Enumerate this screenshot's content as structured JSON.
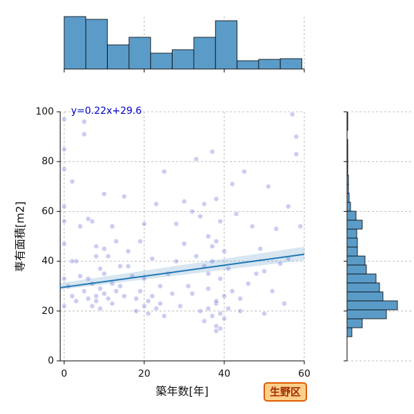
{
  "chart_data": [
    {
      "type": "scatter",
      "xlabel": "築年数[年]",
      "ylabel": "専有面積[m2]",
      "xlim": [
        -1,
        60
      ],
      "ylim": [
        0,
        100
      ],
      "xticks": [
        0,
        20,
        40,
        60
      ],
      "yticks": [
        0,
        20,
        40,
        60,
        80,
        100
      ],
      "grid": true,
      "color": "#5a5ad8",
      "x": [
        0,
        0,
        0,
        0,
        0,
        0,
        0,
        0,
        1,
        2,
        2,
        3,
        3,
        4,
        5,
        5,
        5,
        6,
        6,
        7,
        7,
        7,
        8,
        8,
        8,
        9,
        9,
        9,
        10,
        10,
        10,
        11,
        11,
        12,
        12,
        13,
        13,
        14,
        15,
        15,
        16,
        17,
        18,
        18,
        19,
        19,
        20,
        20,
        20,
        21,
        21,
        22,
        22,
        23,
        23,
        24,
        25,
        25,
        26,
        27,
        28,
        29,
        30,
        30,
        31,
        32,
        33,
        33,
        34,
        34,
        35,
        35,
        35,
        36,
        36,
        36,
        37,
        37,
        37,
        38,
        38,
        38,
        38,
        38,
        39,
        39,
        39,
        40,
        40,
        40,
        41,
        41,
        42,
        42,
        43,
        44,
        45,
        46,
        47,
        48,
        49,
        50,
        51,
        52,
        53,
        54,
        55,
        56,
        57,
        58,
        59,
        2,
        4,
        6,
        10,
        14,
        16,
        24,
        28,
        32,
        37,
        44,
        50,
        56,
        58,
        8,
        12,
        36,
        38,
        39
      ],
      "y": [
        97,
        85,
        77,
        62,
        56,
        47,
        33,
        22,
        30,
        72,
        26,
        24,
        40,
        54,
        96,
        91,
        28,
        25,
        33,
        31,
        56,
        22,
        26,
        46,
        24,
        29,
        37,
        21,
        27,
        67,
        35,
        25,
        42,
        23,
        31,
        48,
        28,
        38,
        66,
        26,
        44,
        34,
        25,
        20,
        28,
        48,
        22,
        33,
        55,
        24,
        19,
        26,
        41,
        21,
        63,
        30,
        76,
        18,
        35,
        27,
        55,
        22,
        47,
        64,
        30,
        60,
        81,
        42,
        20,
        58,
        16,
        38,
        63,
        21,
        50,
        29,
        18,
        84,
        40,
        14,
        12,
        23,
        48,
        65,
        19,
        33,
        56,
        17,
        26,
        44,
        21,
        37,
        28,
        71,
        59,
        20,
        76,
        31,
        54,
        35,
        45,
        19,
        70,
        28,
        53,
        39,
        23,
        62,
        99,
        90,
        54,
        40,
        34,
        57,
        45,
        30,
        38,
        23,
        40,
        27,
        46,
        25,
        36,
        41,
        83,
        42,
        54,
        35,
        24,
        13
      ],
      "regression": {
        "label": "y=0.22x+29.6",
        "slope": 0.22,
        "intercept": 29.6,
        "color": "#1f77b4",
        "label_color": "#0000cc",
        "x": [
          -1,
          60
        ],
        "ci_low": [
          28.6,
          40.4
        ],
        "ci_high": [
          31.2,
          45.8
        ]
      },
      "badge": "生野区"
    },
    {
      "type": "histogram",
      "orientation": "vertical",
      "color": "#5b9bc8",
      "ylim": [
        0,
        76
      ],
      "bins": [
        0,
        5.4,
        10.8,
        16.2,
        21.6,
        27,
        32.4,
        37.8,
        43.2,
        48.6,
        54,
        59.4
      ],
      "counts": [
        76,
        72,
        35,
        46,
        23,
        28,
        46,
        70,
        12,
        14,
        15
      ]
    },
    {
      "type": "histogram",
      "orientation": "horizontal",
      "color": "#5b9bc8",
      "xlim": [
        0,
        95
      ],
      "bins": [
        9.7,
        13.3,
        16.9,
        20.5,
        24.1,
        27.7,
        31.3,
        34.9,
        38.5,
        42.1,
        45.7,
        49.3,
        52.9,
        56.5,
        60.1,
        63.7,
        67.3,
        70.9,
        74.5,
        78.1,
        81.7,
        85.3,
        88.9,
        92.5,
        96.1,
        99.7
      ],
      "counts": [
        7,
        22,
        57,
        73,
        52,
        47,
        42,
        28,
        26,
        15,
        15,
        14,
        22,
        13,
        5,
        3,
        2,
        2,
        1,
        1,
        1,
        1,
        0,
        1,
        1
      ]
    }
  ]
}
